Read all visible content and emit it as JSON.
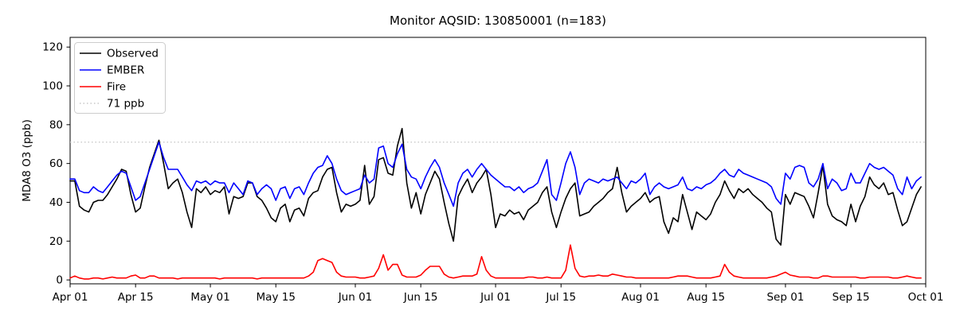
{
  "chart_data": {
    "type": "line",
    "title": "Monitor AQSID: 130850001 (n=183)",
    "ylabel": "MDA8 O3 (ppb)",
    "xlabel": "",
    "ylim": [
      -2,
      125
    ],
    "yticks": [
      0,
      20,
      40,
      60,
      80,
      100,
      120
    ],
    "xtick_labels": [
      "Apr 01",
      "Apr 15",
      "May 01",
      "May 15",
      "Jun 01",
      "Jun 15",
      "Jul 01",
      "Jul 15",
      "Aug 01",
      "Aug 15",
      "Sep 01",
      "Sep 15",
      "Oct 01"
    ],
    "xtick_days": [
      0,
      14,
      30,
      44,
      61,
      75,
      91,
      105,
      122,
      136,
      153,
      167,
      183
    ],
    "n_days": 183,
    "grid": false,
    "legend_position": "upper-left",
    "reference_line": {
      "label": "71 ppb",
      "value": 71,
      "color": "#c8c8c8",
      "style": "dotted"
    },
    "series": [
      {
        "name": "Observed",
        "color": "#000000",
        "values": [
          51,
          51,
          38,
          36,
          35,
          40,
          41,
          41,
          44,
          48,
          52,
          57,
          56,
          44,
          35,
          37,
          48,
          58,
          65,
          72,
          60,
          47,
          50,
          52,
          45,
          35,
          27,
          47,
          45,
          48,
          44,
          46,
          45,
          48,
          34,
          43,
          42,
          43,
          50,
          50,
          43,
          41,
          37,
          32,
          30,
          37,
          39,
          30,
          36,
          37,
          33,
          42,
          45,
          46,
          53,
          57,
          58,
          45,
          35,
          39,
          38,
          39,
          41,
          59,
          39,
          43,
          62,
          63,
          55,
          54,
          69,
          78,
          50,
          37,
          45,
          34,
          44,
          50,
          56,
          52,
          40,
          29,
          20,
          43,
          48,
          52,
          45,
          50,
          53,
          57,
          44,
          27,
          34,
          33,
          36,
          34,
          35,
          31,
          36,
          38,
          40,
          45,
          48,
          35,
          27,
          35,
          42,
          47,
          50,
          33,
          34,
          35,
          38,
          40,
          42,
          45,
          47,
          58,
          45,
          35,
          38,
          40,
          42,
          45,
          40,
          42,
          43,
          30,
          24,
          32,
          30,
          44,
          35,
          26,
          35,
          33,
          31,
          34,
          40,
          44,
          51,
          46,
          42,
          47,
          45,
          47,
          44,
          42,
          40,
          37,
          35,
          21,
          18,
          44,
          39,
          45,
          44,
          43,
          38,
          32,
          45,
          59,
          39,
          33,
          31,
          30,
          28,
          39,
          30,
          38,
          43,
          53,
          49,
          47,
          50,
          44,
          45,
          36,
          28,
          30,
          37,
          44,
          48
        ]
      },
      {
        "name": "EMBER",
        "color": "#0000ff",
        "values": [
          52,
          52,
          46,
          45,
          45,
          48,
          46,
          45,
          48,
          51,
          54,
          56,
          55,
          48,
          41,
          43,
          50,
          57,
          64,
          71,
          63,
          57,
          57,
          57,
          53,
          49,
          46,
          51,
          50,
          51,
          49,
          51,
          50,
          50,
          45,
          50,
          47,
          44,
          51,
          50,
          44,
          47,
          49,
          47,
          41,
          47,
          48,
          42,
          47,
          48,
          44,
          50,
          55,
          58,
          59,
          64,
          60,
          52,
          46,
          44,
          45,
          46,
          47,
          54,
          50,
          52,
          68,
          69,
          60,
          58,
          65,
          70,
          57,
          53,
          52,
          47,
          53,
          58,
          62,
          58,
          50,
          44,
          38,
          50,
          55,
          57,
          53,
          57,
          60,
          57,
          54,
          52,
          50,
          48,
          48,
          46,
          48,
          45,
          47,
          48,
          50,
          56,
          62,
          44,
          41,
          50,
          60,
          66,
          58,
          44,
          50,
          52,
          51,
          50,
          52,
          51,
          52,
          53,
          50,
          47,
          51,
          50,
          52,
          55,
          44,
          48,
          50,
          48,
          47,
          48,
          49,
          53,
          47,
          46,
          48,
          47,
          49,
          50,
          52,
          55,
          57,
          54,
          53,
          57,
          55,
          54,
          53,
          52,
          51,
          50,
          48,
          42,
          39,
          55,
          52,
          58,
          59,
          58,
          50,
          48,
          52,
          60,
          47,
          52,
          50,
          46,
          47,
          55,
          50,
          50,
          55,
          60,
          58,
          57,
          58,
          56,
          54,
          47,
          44,
          53,
          47,
          51,
          53
        ]
      },
      {
        "name": "Fire",
        "color": "#ff0000",
        "values": [
          1,
          2,
          1,
          0.5,
          0.5,
          1,
          1,
          0.5,
          1,
          1.5,
          1,
          1,
          1,
          2,
          2.5,
          1,
          1,
          2,
          2,
          1,
          1,
          1,
          1,
          0.5,
          1,
          1,
          1,
          1,
          1,
          1,
          1,
          1,
          0.5,
          1,
          1,
          1,
          1,
          1,
          1,
          1,
          0.5,
          1,
          1,
          1,
          1,
          1,
          1,
          1,
          1,
          1,
          1,
          2,
          4,
          10,
          11,
          10,
          9,
          4,
          2,
          1.5,
          1.5,
          1.5,
          1,
          1,
          1.5,
          2,
          6,
          13,
          5,
          8,
          8,
          2.5,
          1.5,
          1.5,
          1.5,
          2.5,
          5,
          7,
          7,
          7,
          3,
          1.5,
          1,
          1.5,
          2,
          2,
          2,
          3,
          12,
          5,
          2,
          1,
          1,
          1,
          1,
          1,
          1,
          1,
          1.5,
          1.5,
          1,
          1,
          1.5,
          1,
          1,
          1,
          5,
          18,
          6,
          2,
          1.5,
          2,
          2,
          2.5,
          2,
          2,
          3,
          2.5,
          2,
          1.5,
          1.5,
          1,
          1,
          1,
          1,
          1,
          1,
          1,
          1,
          1.5,
          2,
          2,
          2,
          1.5,
          1,
          1,
          1,
          1,
          1.5,
          2,
          8,
          4,
          2,
          1.5,
          1,
          1,
          1,
          1,
          1,
          1,
          1.5,
          2,
          3,
          4,
          2.5,
          2,
          1.5,
          1.5,
          1.5,
          1,
          1,
          2,
          2,
          1.5,
          1.5,
          1.5,
          1.5,
          1.5,
          1.5,
          1,
          1,
          1.5,
          1.5,
          1.5,
          1.5,
          1.5,
          1,
          1,
          1.5,
          2,
          1.5,
          1,
          1
        ]
      }
    ]
  }
}
